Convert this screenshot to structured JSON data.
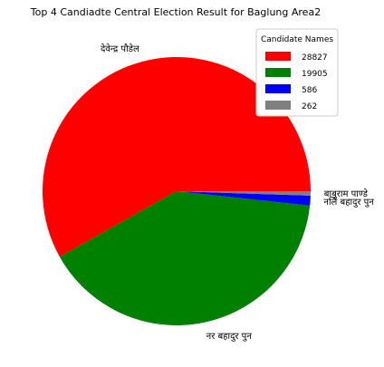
{
  "chart_data": {
    "type": "pie",
    "title": "Top 4 Candiadte Central Election Result for Baglung Area2",
    "slices": [
      {
        "label": "देवेन्द्र पौडेल",
        "value": 28827,
        "color": "#ff0000"
      },
      {
        "label": "नर बहादुर पुन",
        "value": 19905,
        "color": "#008000"
      },
      {
        "label": "नलि बहादुर पुन",
        "value": 586,
        "color": "#0000ff"
      },
      {
        "label": "बाबुराम पाण्डे",
        "value": 262,
        "color": "#808080"
      }
    ],
    "legend": {
      "title": "Candidate Names",
      "placement": "top-right",
      "entries": [
        "28827",
        "19905",
        "586",
        "262"
      ]
    }
  }
}
